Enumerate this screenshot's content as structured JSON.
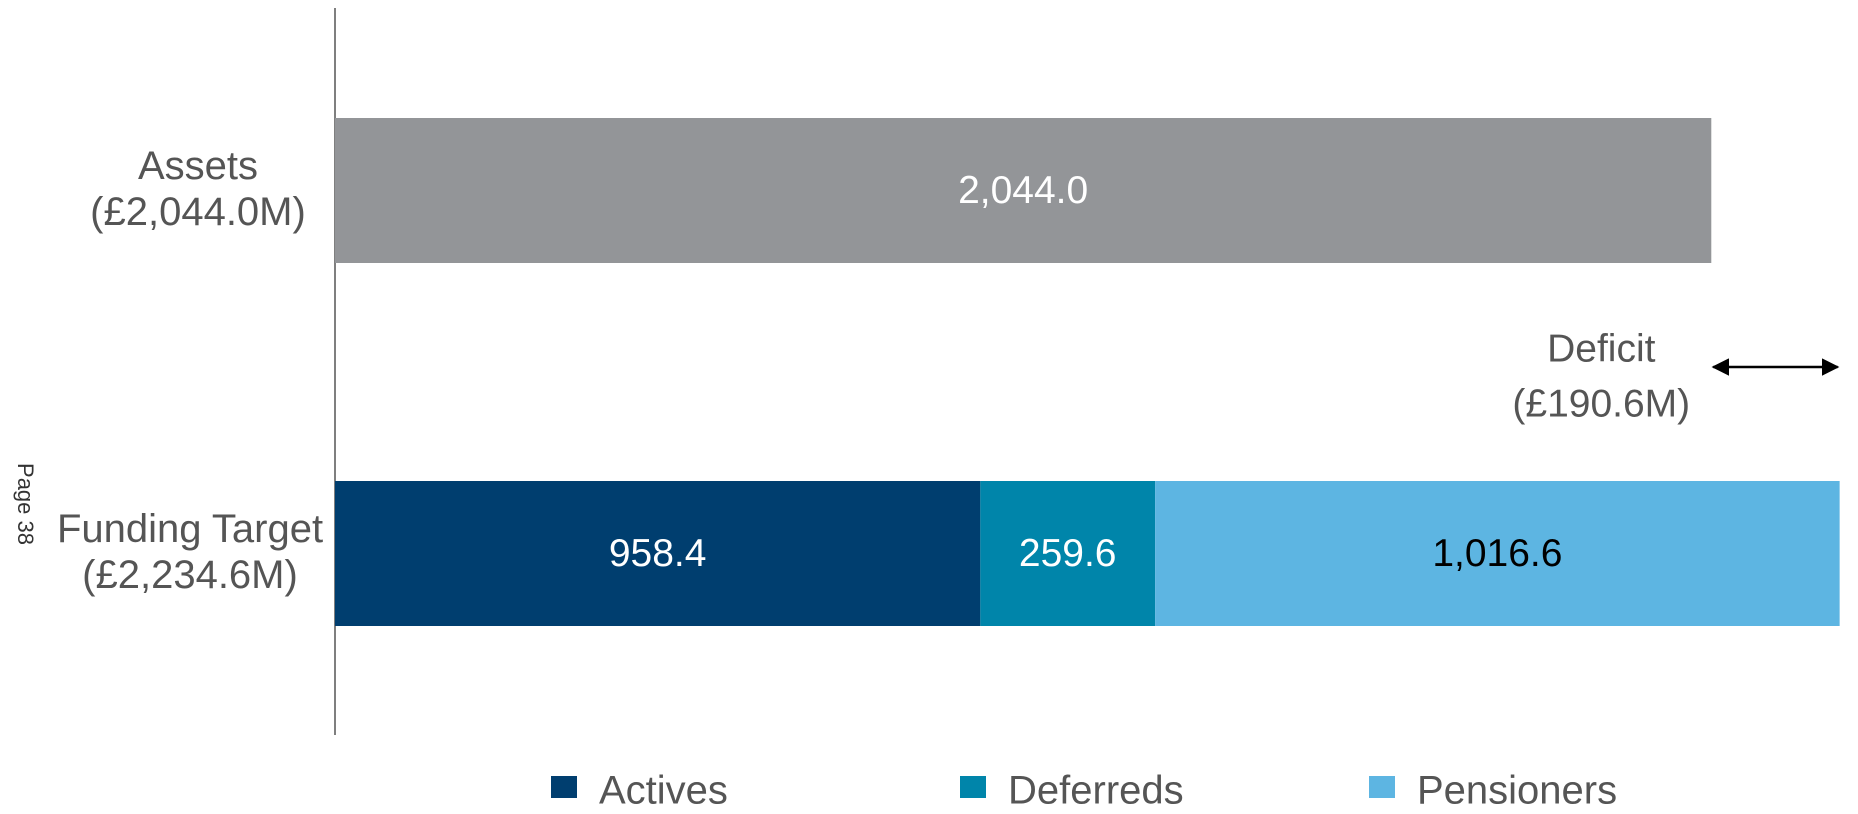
{
  "chart_data": {
    "type": "stacked-barh",
    "side_note": "Page 38",
    "categories": [
      [
        "Assets",
        "(£2,044.0M)"
      ],
      [
        "Funding Target",
        "(£2,234.6M)"
      ]
    ],
    "series": [
      {
        "color": "#939598",
        "label_color": "#ffffff",
        "values": [
          2044.0,
          null
        ],
        "value_labels": [
          "2,044.0",
          null
        ]
      },
      {
        "name": "Actives",
        "color": "#003e6f",
        "label_color": "#ffffff",
        "values": [
          null,
          958.4
        ]
      },
      {
        "name": "Deferreds",
        "color": "#0085aa",
        "label_color": "#ffffff",
        "values": [
          null,
          259.6
        ]
      },
      {
        "name": "Pensioners",
        "color": "#5db5e2",
        "label_color": "#000000",
        "values": [
          null,
          1016.6
        ],
        "value_labels": [
          null,
          "1,016.6"
        ]
      }
    ],
    "annotation": {
      "text": [
        "Deficit",
        "(£190.6M)"
      ],
      "value": 190.6
    },
    "xlim": [
      0,
      2250
    ]
  }
}
